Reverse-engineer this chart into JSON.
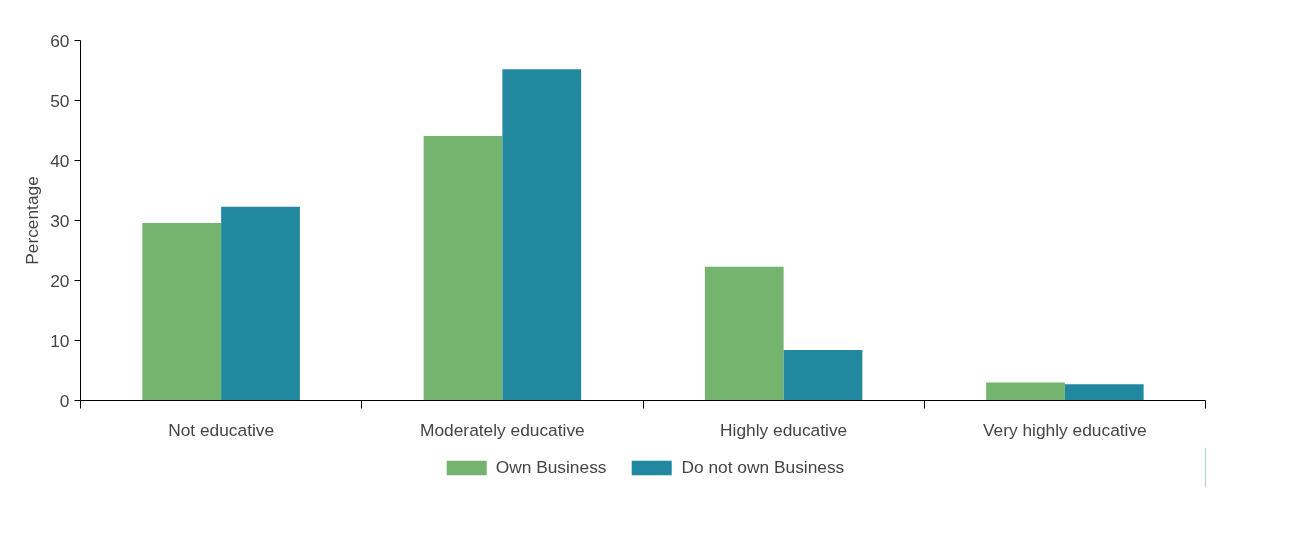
{
  "chart_data": {
    "type": "bar",
    "ylabel": "Percentage",
    "categories": [
      "Not educative",
      "Moderately educative",
      "Highly educative",
      "Very highly educative"
    ],
    "series": [
      {
        "name": "Own Business",
        "color": "#75b46f",
        "values": [
          29.6,
          44.1,
          22.3,
          3.0
        ]
      },
      {
        "name": "Do not own Business",
        "color": "#21889f",
        "values": [
          32.3,
          55.2,
          8.4,
          2.7
        ]
      }
    ],
    "ylim": [
      0,
      60
    ],
    "yticks": [
      0,
      10,
      20,
      30,
      40,
      50,
      60
    ],
    "grid": false,
    "legend": "bottom"
  }
}
